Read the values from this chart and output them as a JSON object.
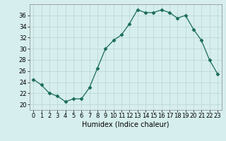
{
  "x": [
    0,
    1,
    2,
    3,
    4,
    5,
    6,
    7,
    8,
    9,
    10,
    11,
    12,
    13,
    14,
    15,
    16,
    17,
    18,
    19,
    20,
    21,
    22,
    23
  ],
  "y": [
    24.5,
    23.5,
    22.0,
    21.5,
    20.5,
    21.0,
    21.0,
    23.0,
    26.5,
    30.0,
    31.5,
    32.5,
    34.5,
    37.0,
    36.5,
    36.5,
    37.0,
    36.5,
    35.5,
    36.0,
    33.5,
    31.5,
    28.0,
    25.5
  ],
  "line_color": "#1a6b5a",
  "marker": "D",
  "marker_size": 2.5,
  "bg_color": "#d6eeee",
  "grid_color": "#b8d4d4",
  "xlabel": "Humidex (Indice chaleur)",
  "ylabel": "",
  "xlim": [
    -0.5,
    23.5
  ],
  "ylim": [
    19,
    38
  ],
  "yticks": [
    20,
    22,
    24,
    26,
    28,
    30,
    32,
    34,
    36
  ],
  "xticks": [
    0,
    1,
    2,
    3,
    4,
    5,
    6,
    7,
    8,
    9,
    10,
    11,
    12,
    13,
    14,
    15,
    16,
    17,
    18,
    19,
    20,
    21,
    22,
    23
  ],
  "xlabel_fontsize": 7,
  "tick_fontsize": 6
}
